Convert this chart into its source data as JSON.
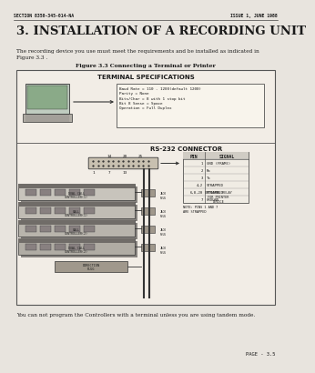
{
  "page_bg": "#e8e4de",
  "header_left": "SECTION 8350-345-014-NA",
  "header_right": "ISSUE 1, JUNE 1988",
  "title": "3. INSTALLATION OF A RECORDING UNIT",
  "body_text": "The recording device you use must meet the requirements and be installed as indicated in\nFigure 3.3 .",
  "figure_caption": "Figure 3.3 Connecting a Terminal or Printer",
  "terminal_specs_title": "TERMINAL SPECIFICATIONS",
  "terminal_specs": "Baud Rate = 110 - 1200(default 1200)\nParity = None\nBits/Char = 8 with 1 stop bit\nBit 8 Sense = Space\nOperation = Full Duplex",
  "rs232_title": "RS-232 CONNECTOR",
  "pin_header": [
    "PIN",
    "SIGNAL"
  ],
  "pin_data": [
    [
      "1",
      "GND (FRAME)"
    ],
    [
      "2",
      "Rx"
    ],
    [
      "3",
      "Tx"
    ],
    [
      "4,2",
      "STRAPPED"
    ],
    [
      "6,8,20",
      "STRAPPED"
    ],
    [
      "7",
      "GROUND"
    ]
  ],
  "pin_note": "NOTE: PINS 1 AND 7\nARE STRAPPED",
  "optional_note": "OPTIONAL RELAY\nFOR PRINTER\nDEVICE",
  "connector_labels_top": [
    "14",
    "20",
    "25"
  ],
  "connector_labels_bot": [
    "1",
    "7",
    "13"
  ],
  "jack_label": "JACK\nPLUG",
  "plug_label": "PLUG\nJACK",
  "unit_labels": [
    "DUAL CALL\nCONTROLLER(1)",
    "CALL\nCONTROLLER(1)",
    "CALL\nCONTROLLER(2)",
    "DUAL CALL\nCONTROLLER(2)"
  ],
  "direction_label": "DIRECTION\nPLUG",
  "bottom_text": "You can not program the Controllers with a terminal unless you are using tandem mode.",
  "page_num": "PAGE - 3.5",
  "tc": "#1a1a1a",
  "fig_bg": "#f2ede6",
  "fig_border": "#555555"
}
